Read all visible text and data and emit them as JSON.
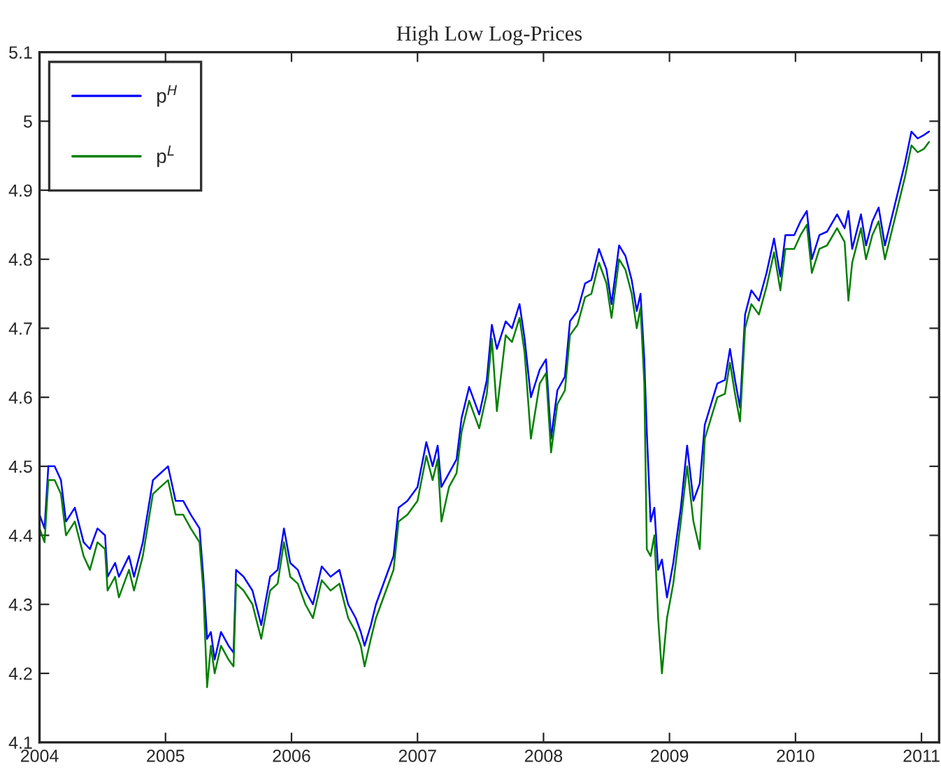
{
  "chart_data": {
    "type": "line",
    "title": "High Low Log-Prices",
    "x": [
      2004.0,
      2004.04,
      2004.07,
      2004.12,
      2004.17,
      2004.21,
      2004.28,
      2004.35,
      2004.4,
      2004.46,
      2004.52,
      2004.54,
      2004.6,
      2004.63,
      2004.71,
      2004.75,
      2004.82,
      2004.9,
      2004.96,
      2005.02,
      2005.08,
      2005.14,
      2005.2,
      2005.27,
      2005.3,
      2005.33,
      2005.36,
      2005.39,
      2005.44,
      2005.5,
      2005.54,
      2005.56,
      2005.62,
      2005.69,
      2005.76,
      2005.83,
      2005.89,
      2005.94,
      2005.99,
      2006.05,
      2006.11,
      2006.17,
      2006.24,
      2006.31,
      2006.38,
      2006.45,
      2006.51,
      2006.55,
      2006.58,
      2006.63,
      2006.67,
      2006.75,
      2006.81,
      2006.85,
      2006.92,
      2007.0,
      2007.07,
      2007.12,
      2007.16,
      2007.19,
      2007.25,
      2007.31,
      2007.35,
      2007.41,
      2007.49,
      2007.55,
      2007.59,
      2007.63,
      2007.7,
      2007.75,
      2007.81,
      2007.85,
      2007.9,
      2007.97,
      2008.02,
      2008.06,
      2008.11,
      2008.17,
      2008.21,
      2008.27,
      2008.33,
      2008.38,
      2008.44,
      2008.5,
      2008.54,
      2008.6,
      2008.65,
      2008.7,
      2008.74,
      2008.77,
      2008.8,
      2008.82,
      2008.85,
      2008.88,
      2008.91,
      2008.94,
      2008.98,
      2009.03,
      2009.09,
      2009.14,
      2009.19,
      2009.24,
      2009.28,
      2009.33,
      2009.38,
      2009.44,
      2009.48,
      2009.52,
      2009.56,
      2009.6,
      2009.65,
      2009.71,
      2009.77,
      2009.83,
      2009.88,
      2009.92,
      2009.99,
      2010.04,
      2010.09,
      2010.13,
      2010.19,
      2010.25,
      2010.33,
      2010.39,
      2010.42,
      2010.45,
      2010.52,
      2010.56,
      2010.61,
      2010.66,
      2010.71,
      2010.77,
      2010.83,
      2010.87,
      2010.92,
      2010.97,
      2011.02,
      2011.06
    ],
    "series": [
      {
        "name": "p$^{H}$",
        "color": "#0000ff",
        "values": [
          4.43,
          4.41,
          4.5,
          4.5,
          4.48,
          4.42,
          4.44,
          4.39,
          4.38,
          4.41,
          4.4,
          4.34,
          4.36,
          4.34,
          4.37,
          4.34,
          4.39,
          4.48,
          4.49,
          4.5,
          4.45,
          4.45,
          4.43,
          4.41,
          4.34,
          4.25,
          4.26,
          4.22,
          4.26,
          4.24,
          4.23,
          4.35,
          4.34,
          4.32,
          4.27,
          4.34,
          4.35,
          4.41,
          4.36,
          4.35,
          4.32,
          4.3,
          4.355,
          4.34,
          4.35,
          4.3,
          4.28,
          4.26,
          4.24,
          4.27,
          4.3,
          4.34,
          4.37,
          4.44,
          4.45,
          4.47,
          4.535,
          4.5,
          4.53,
          4.47,
          4.49,
          4.51,
          4.57,
          4.615,
          4.575,
          4.625,
          4.705,
          4.67,
          4.71,
          4.7,
          4.735,
          4.685,
          4.6,
          4.64,
          4.655,
          4.54,
          4.61,
          4.63,
          4.71,
          4.725,
          4.765,
          4.77,
          4.815,
          4.785,
          4.735,
          4.82,
          4.805,
          4.77,
          4.725,
          4.75,
          4.655,
          4.55,
          4.42,
          4.44,
          4.35,
          4.365,
          4.31,
          4.36,
          4.44,
          4.53,
          4.45,
          4.475,
          4.56,
          4.59,
          4.62,
          4.625,
          4.67,
          4.625,
          4.585,
          4.72,
          4.755,
          4.74,
          4.78,
          4.83,
          4.775,
          4.835,
          4.835,
          4.855,
          4.87,
          4.8,
          4.835,
          4.84,
          4.865,
          4.845,
          4.87,
          4.815,
          4.865,
          4.82,
          4.855,
          4.875,
          4.82,
          4.865,
          4.91,
          4.94,
          4.985,
          4.975,
          4.98,
          4.985
        ]
      },
      {
        "name": "p$^{L}$",
        "color": "#008000",
        "values": [
          4.41,
          4.39,
          4.48,
          4.48,
          4.46,
          4.4,
          4.42,
          4.37,
          4.35,
          4.39,
          4.38,
          4.32,
          4.34,
          4.31,
          4.35,
          4.32,
          4.37,
          4.46,
          4.47,
          4.48,
          4.43,
          4.43,
          4.41,
          4.39,
          4.32,
          4.18,
          4.24,
          4.2,
          4.24,
          4.22,
          4.21,
          4.33,
          4.32,
          4.3,
          4.25,
          4.32,
          4.33,
          4.39,
          4.34,
          4.33,
          4.3,
          4.28,
          4.335,
          4.32,
          4.33,
          4.28,
          4.26,
          4.24,
          4.21,
          4.25,
          4.28,
          4.32,
          4.35,
          4.42,
          4.43,
          4.45,
          4.515,
          4.48,
          4.51,
          4.42,
          4.47,
          4.49,
          4.55,
          4.595,
          4.555,
          4.605,
          4.685,
          4.58,
          4.69,
          4.68,
          4.715,
          4.665,
          4.54,
          4.62,
          4.635,
          4.52,
          4.59,
          4.61,
          4.69,
          4.705,
          4.745,
          4.75,
          4.795,
          4.765,
          4.715,
          4.8,
          4.785,
          4.75,
          4.7,
          4.73,
          4.62,
          4.38,
          4.37,
          4.4,
          4.28,
          4.2,
          4.28,
          4.33,
          4.42,
          4.5,
          4.42,
          4.38,
          4.54,
          4.57,
          4.6,
          4.605,
          4.65,
          4.605,
          4.565,
          4.7,
          4.735,
          4.72,
          4.76,
          4.81,
          4.755,
          4.815,
          4.815,
          4.835,
          4.85,
          4.78,
          4.815,
          4.82,
          4.845,
          4.825,
          4.74,
          4.795,
          4.845,
          4.8,
          4.835,
          4.855,
          4.8,
          4.845,
          4.89,
          4.92,
          4.965,
          4.955,
          4.96,
          4.97
        ]
      }
    ],
    "xlim": [
      2004,
      2011.14
    ],
    "ylim": [
      4.1,
      5.1
    ],
    "xticks": [
      2004,
      2005,
      2006,
      2007,
      2008,
      2009,
      2010,
      2011
    ],
    "yticks": [
      4.1,
      4.2,
      4.3,
      4.4,
      4.5,
      4.6,
      4.7,
      4.8,
      4.9,
      5,
      5.1
    ],
    "legend": "top left",
    "grid": false
  }
}
